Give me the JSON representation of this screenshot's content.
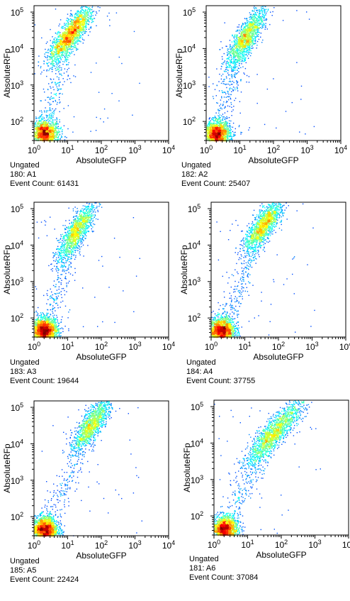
{
  "chart_data": [
    {
      "type": "scatter",
      "xlabel": "AbsoluteGFP",
      "ylabel": "AbsoluteRFp",
      "x_scale": "log",
      "y_scale": "log",
      "xlim": [
        1,
        10000
      ],
      "ylim": [
        30,
        150000
      ],
      "x_ticks": [
        1,
        10,
        100,
        1000,
        10000
      ],
      "y_ticks": [
        100,
        1000,
        10000,
        100000
      ],
      "caption": [
        "Ungated",
        "180: A1",
        "Event Count: 61431"
      ],
      "event_count": 61431,
      "populations": [
        {
          "name": "negative",
          "center": [
            2,
            45
          ],
          "spread": [
            0.22,
            0.2
          ],
          "weight": 0.45
        },
        {
          "name": "positive",
          "center": [
            12,
            25000
          ],
          "spread": [
            0.3,
            0.35
          ],
          "weight": 0.55
        }
      ]
    },
    {
      "type": "scatter",
      "xlabel": "AbsoluteGFP",
      "ylabel": "AbsoluteRFp",
      "x_scale": "log",
      "y_scale": "log",
      "xlim": [
        1,
        10000
      ],
      "ylim": [
        30,
        150000
      ],
      "x_ticks": [
        1,
        10,
        100,
        1000,
        10000
      ],
      "y_ticks": [
        100,
        1000,
        10000,
        100000
      ],
      "caption": [
        "Ungated",
        "182: A2",
        "Event Count: 25407"
      ],
      "event_count": 25407,
      "populations": [
        {
          "name": "negative",
          "center": [
            2,
            45
          ],
          "spread": [
            0.2,
            0.18
          ],
          "weight": 0.55
        },
        {
          "name": "positive",
          "center": [
            15,
            20000
          ],
          "spread": [
            0.28,
            0.4
          ],
          "weight": 0.45
        }
      ]
    },
    {
      "type": "scatter",
      "xlabel": "AbsoluteGFP",
      "ylabel": "AbsoluteRFp",
      "x_scale": "log",
      "y_scale": "log",
      "xlim": [
        1,
        10000
      ],
      "ylim": [
        30,
        150000
      ],
      "x_ticks": [
        1,
        10,
        100,
        1000,
        10000
      ],
      "y_ticks": [
        100,
        1000,
        10000,
        100000
      ],
      "caption": [
        "Ungated",
        "183: A3",
        "Event Count: 19644"
      ],
      "event_count": 19644,
      "populations": [
        {
          "name": "negative",
          "center": [
            2,
            45
          ],
          "spread": [
            0.2,
            0.18
          ],
          "weight": 0.6
        },
        {
          "name": "positive",
          "center": [
            18,
            25000
          ],
          "spread": [
            0.25,
            0.35
          ],
          "weight": 0.4
        }
      ]
    },
    {
      "type": "scatter",
      "xlabel": "AbsoluteGFP",
      "ylabel": "AbsoluteRFp",
      "x_scale": "log",
      "y_scale": "log",
      "xlim": [
        1,
        10000
      ],
      "ylim": [
        30,
        150000
      ],
      "x_ticks": [
        1,
        10,
        100,
        1000,
        10000
      ],
      "y_ticks": [
        100,
        1000,
        10000,
        100000
      ],
      "caption": [
        "Ungated",
        "184: A4",
        "Event Count: 37755"
      ],
      "event_count": 37755,
      "populations": [
        {
          "name": "negative",
          "center": [
            2,
            45
          ],
          "spread": [
            0.2,
            0.18
          ],
          "weight": 0.55
        },
        {
          "name": "positive",
          "center": [
            35,
            35000
          ],
          "spread": [
            0.25,
            0.3
          ],
          "weight": 0.45
        }
      ]
    },
    {
      "type": "scatter",
      "xlabel": "AbsoluteGFP",
      "ylabel": "AbsoluteRFp",
      "x_scale": "log",
      "y_scale": "log",
      "xlim": [
        1,
        10000
      ],
      "ylim": [
        30,
        150000
      ],
      "x_ticks": [
        1,
        10,
        100,
        1000,
        10000
      ],
      "y_ticks": [
        100,
        1000,
        10000,
        100000
      ],
      "caption": [
        "Ungated",
        "185: A5",
        "Event Count: 22424"
      ],
      "event_count": 22424,
      "populations": [
        {
          "name": "negative",
          "center": [
            2,
            45
          ],
          "spread": [
            0.2,
            0.18
          ],
          "weight": 0.6
        },
        {
          "name": "positive",
          "center": [
            50,
            35000
          ],
          "spread": [
            0.25,
            0.3
          ],
          "weight": 0.4
        }
      ]
    },
    {
      "type": "scatter",
      "xlabel": "AbsoluteGFP",
      "ylabel": "AbsoluteRFp",
      "x_scale": "log",
      "y_scale": "log",
      "xlim": [
        1,
        10000
      ],
      "ylim": [
        30,
        150000
      ],
      "x_ticks": [
        1,
        10,
        100,
        1000,
        10000
      ],
      "y_ticks": [
        100,
        1000,
        10000,
        100000
      ],
      "caption": [
        "Ungated",
        "181: A6",
        "Event Count: 37084"
      ],
      "event_count": 37084,
      "populations": [
        {
          "name": "negative",
          "center": [
            2,
            45
          ],
          "spread": [
            0.2,
            0.18
          ],
          "weight": 0.5
        },
        {
          "name": "positive",
          "center": [
            60,
            20000
          ],
          "spread": [
            0.45,
            0.45
          ],
          "weight": 0.5
        }
      ]
    }
  ]
}
